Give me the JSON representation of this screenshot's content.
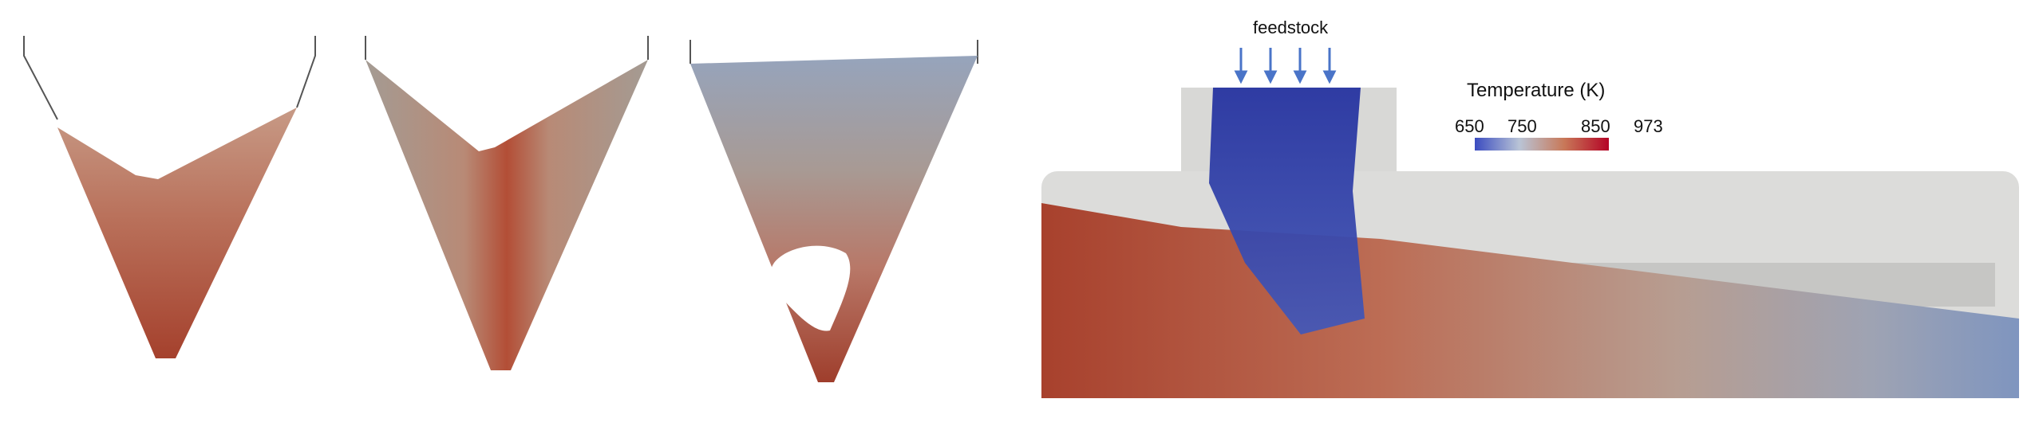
{
  "figure": {
    "feed_label": "feedstock",
    "colorbar": {
      "title": "Temperature (K)",
      "ticks": [
        "650",
        "750",
        "850",
        "973"
      ],
      "colors": [
        "#3b4cc0",
        "#b9c4d6",
        "#c87858",
        "#b40426"
      ]
    },
    "colors": {
      "hot": "#b03a2e",
      "warm": "#c87864",
      "neutral": "#b7aca4",
      "cool": "#8aa1c8",
      "cold": "#1f2d9c",
      "shell": "#d8d8d6"
    }
  }
}
